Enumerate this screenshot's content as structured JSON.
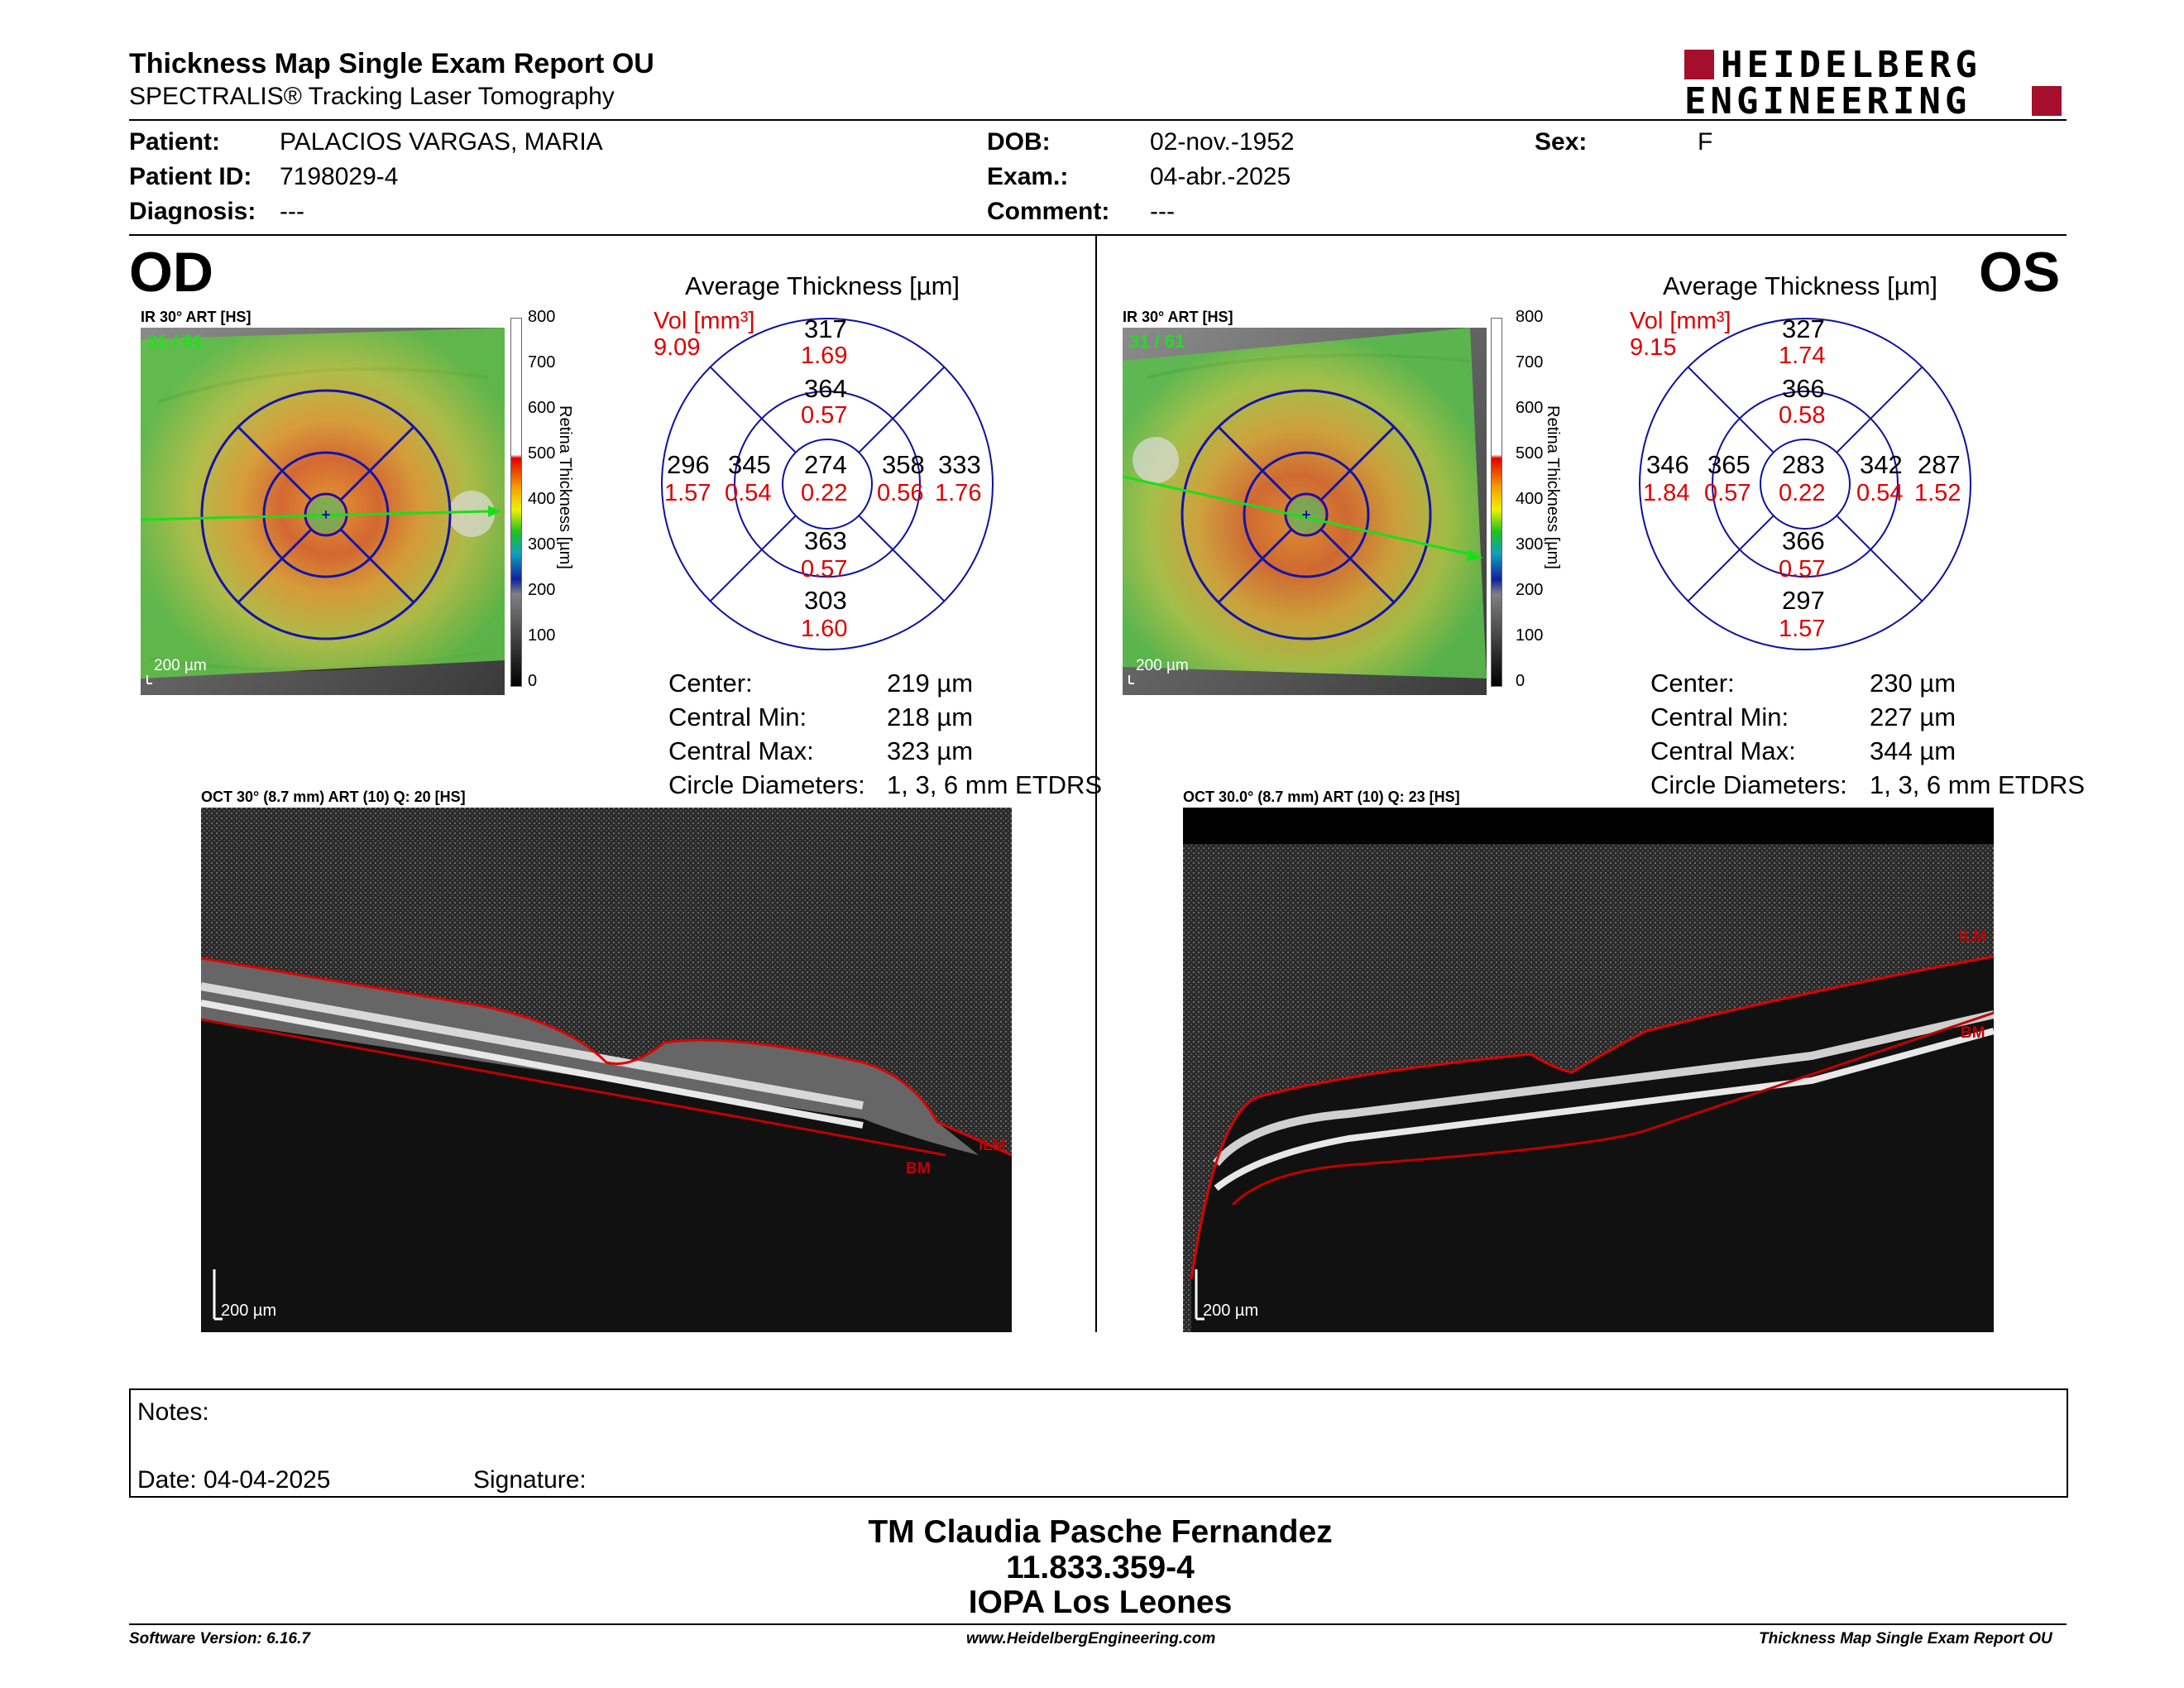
{
  "header": {
    "title": "Thickness Map Single Exam Report OU",
    "subtitle": "SPECTRALIS® Tracking Laser Tomography",
    "logo_line1": "HEIDELBERG",
    "logo_line2": "ENGINEERING"
  },
  "patient": {
    "patient_label": "Patient:",
    "patient_value": "PALACIOS VARGAS, MARIA",
    "id_label": "Patient ID:",
    "id_value": "7198029-4",
    "diagnosis_label": "Diagnosis:",
    "diagnosis_value": "---",
    "dob_label": "DOB:",
    "dob_value": "02-nov.-1952",
    "exam_label": "Exam.:",
    "exam_value": "04-abr.-2025",
    "comment_label": "Comment:",
    "comment_value": "---",
    "sex_label": "Sex:",
    "sex_value": "F"
  },
  "od": {
    "eye": "OD",
    "ir_label": "IR 30° ART [HS]",
    "frame": "31 / 61",
    "scale": "200 µm",
    "colorbar_ticks": [
      "800",
      "700",
      "600",
      "500",
      "400",
      "300",
      "200",
      "100",
      "0"
    ],
    "colorbar_label": "Retina Thickness [µm]",
    "grid_title": "Average Thickness [µm]",
    "vol_label": "Vol [mm³]",
    "vol_total": "9.09",
    "sectors": {
      "outer_superior": {
        "t": "317",
        "v": "1.69"
      },
      "inner_superior": {
        "t": "364",
        "v": "0.57"
      },
      "outer_nasal_left": {
        "t": "296",
        "v": "1.57"
      },
      "inner_left": {
        "t": "345",
        "v": "0.54"
      },
      "center": {
        "t": "274",
        "v": "0.22"
      },
      "inner_right": {
        "t": "358",
        "v": "0.56"
      },
      "outer_right": {
        "t": "333",
        "v": "1.76"
      },
      "inner_inferior": {
        "t": "363",
        "v": "0.57"
      },
      "outer_inferior": {
        "t": "303",
        "v": "1.60"
      }
    },
    "stats": [
      {
        "label": "Center:",
        "value": "219 µm"
      },
      {
        "label": "Central Min:",
        "value": "218 µm"
      },
      {
        "label": "Central Max:",
        "value": "323 µm"
      },
      {
        "label": "Circle Diameters:",
        "value": "1, 3, 6 mm ETDRS"
      }
    ],
    "oct_label": "OCT 30° (8.7 mm) ART (10) Q: 20 [HS]",
    "oct_scale": "200 µm",
    "ilm": "ILM",
    "bm": "BM"
  },
  "os": {
    "eye": "OS",
    "ir_label": "IR 30° ART [HS]",
    "frame": "31 / 61",
    "scale": "200 µm",
    "colorbar_ticks": [
      "800",
      "700",
      "600",
      "500",
      "400",
      "300",
      "200",
      "100",
      "0"
    ],
    "colorbar_label": "Retina Thickness [µm]",
    "grid_title": "Average Thickness [µm]",
    "vol_label": "Vol [mm³]",
    "vol_total": "9.15",
    "sectors": {
      "outer_superior": {
        "t": "327",
        "v": "1.74"
      },
      "inner_superior": {
        "t": "366",
        "v": "0.58"
      },
      "outer_nasal_left": {
        "t": "346",
        "v": "1.84"
      },
      "inner_left": {
        "t": "365",
        "v": "0.57"
      },
      "center": {
        "t": "283",
        "v": "0.22"
      },
      "inner_right": {
        "t": "342",
        "v": "0.54"
      },
      "outer_right": {
        "t": "287",
        "v": "1.52"
      },
      "inner_inferior": {
        "t": "366",
        "v": "0.57"
      },
      "outer_inferior": {
        "t": "297",
        "v": "1.57"
      }
    },
    "stats": [
      {
        "label": "Center:",
        "value": "230 µm"
      },
      {
        "label": "Central Min:",
        "value": "227 µm"
      },
      {
        "label": "Central Max:",
        "value": "344 µm"
      },
      {
        "label": "Circle Diameters:",
        "value": "1, 3, 6 mm ETDRS"
      }
    ],
    "oct_label": "OCT 30.0° (8.7 mm) ART (10) Q: 23 [HS]",
    "oct_scale": "200 µm",
    "ilm": "ILM",
    "bm": "BM"
  },
  "notes": {
    "notes_label": "Notes:",
    "date_label": "Date: 04-04-2025",
    "signature_label": "Signature:"
  },
  "signature_block": {
    "line1": "TM Claudia Pasche Fernandez",
    "line2": "11.833.359-4",
    "line3": "IOPA Los Leones"
  },
  "footer": {
    "software": "Software Version: 6.16.7",
    "website": "www.HeidelbergEngineering.com",
    "report": "Thickness Map Single Exam Report OU"
  },
  "colors": {
    "red": "#d00000",
    "blue": "#1010a0",
    "brand": "#a50f2d"
  }
}
